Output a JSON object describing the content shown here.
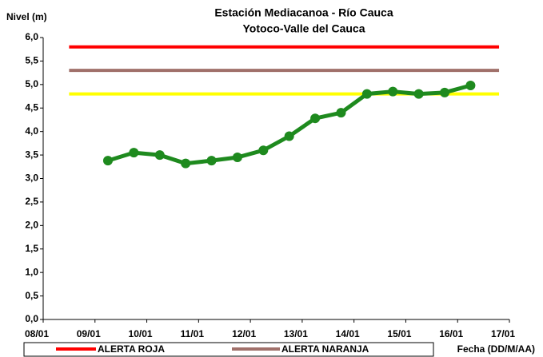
{
  "chart_data": {
    "type": "line",
    "title": "Estación Mediacanoa - Río Cauca",
    "subtitle": "Yotoco-Valle del Cauca",
    "y_label": "Nivel (m)",
    "x_label": "Fecha (DD/M/AA)",
    "xlim": [
      8,
      17
    ],
    "xticks": [
      {
        "value": 8,
        "label": "08/01"
      },
      {
        "value": 9,
        "label": "09/01"
      },
      {
        "value": 10,
        "label": "10/01"
      },
      {
        "value": 11,
        "label": "11/01"
      },
      {
        "value": 12,
        "label": "12/01"
      },
      {
        "value": 13,
        "label": "13/01"
      },
      {
        "value": 14,
        "label": "14/01"
      },
      {
        "value": 15,
        "label": "15/01"
      },
      {
        "value": 16,
        "label": "16/01"
      },
      {
        "value": 17,
        "label": "17/01"
      }
    ],
    "ylim": [
      0,
      6
    ],
    "yticks": [
      {
        "value": 0,
        "label": "0,0"
      },
      {
        "value": 0.5,
        "label": "0,5"
      },
      {
        "value": 1,
        "label": "1,0"
      },
      {
        "value": 1.5,
        "label": "1,5"
      },
      {
        "value": 2,
        "label": "2,0"
      },
      {
        "value": 2.5,
        "label": "2,5"
      },
      {
        "value": 3,
        "label": "3,0"
      },
      {
        "value": 3.5,
        "label": "3,5"
      },
      {
        "value": 4,
        "label": "4,0"
      },
      {
        "value": 4.5,
        "label": "4,5"
      },
      {
        "value": 5,
        "label": "5,0"
      },
      {
        "value": 5.5,
        "label": "5,5"
      },
      {
        "value": 6,
        "label": "6,0"
      }
    ],
    "grid": false,
    "series": [
      {
        "name": "ALERTA ROJA",
        "color": "#ff0000",
        "x": [
          8.5,
          16.8
        ],
        "values": [
          5.8,
          5.8
        ]
      },
      {
        "name": "ALERTA NARANJA",
        "color": "#a0706a",
        "x": [
          8.5,
          16.8
        ],
        "values": [
          5.3,
          5.3
        ]
      },
      {
        "color": "#ffff00",
        "x": [
          8.5,
          16.8
        ],
        "values": [
          4.8,
          4.8
        ]
      },
      {
        "color": "#1e8a1e",
        "markers": true,
        "x": [
          9.25,
          9.75,
          10.25,
          10.75,
          11.25,
          11.75,
          12.25,
          12.75,
          13.25,
          13.75,
          14.25,
          14.75,
          15.25,
          15.75,
          16.25
        ],
        "values": [
          3.38,
          3.55,
          3.5,
          3.32,
          3.38,
          3.45,
          3.6,
          3.9,
          4.28,
          4.4,
          4.8,
          4.85,
          4.8,
          4.83,
          4.98
        ]
      }
    ]
  }
}
